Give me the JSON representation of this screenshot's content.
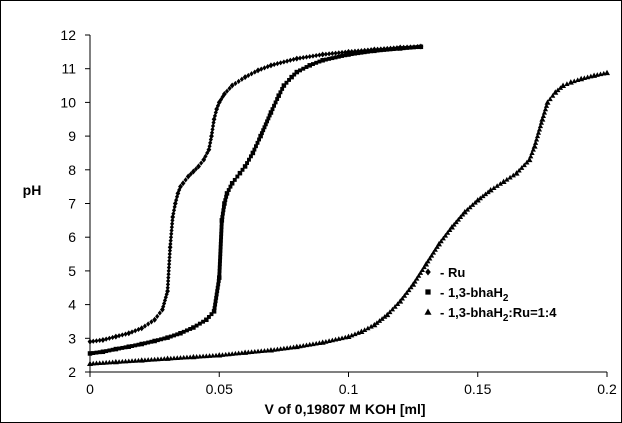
{
  "chart_data": {
    "type": "scatter",
    "xlabel": "V of 0,19807 M KOH [ml]",
    "ylabel": "pH",
    "xlim": [
      0,
      0.2
    ],
    "ylim": [
      2,
      12
    ],
    "x_ticks": [
      "0",
      "0.05",
      "0.1",
      "0.15",
      "0.2"
    ],
    "y_ticks": [
      "2",
      "3",
      "4",
      "5",
      "6",
      "7",
      "8",
      "9",
      "10",
      "11",
      "12"
    ],
    "grid": false,
    "legend_position": "bottom-right",
    "series": [
      {
        "name_prefix": "- ",
        "name": "Ru",
        "name_sub": "",
        "name_suffix": "",
        "marker": "diamond",
        "x": [
          0,
          0.005,
          0.01,
          0.015,
          0.02,
          0.025,
          0.028,
          0.03,
          0.031,
          0.032,
          0.033,
          0.034,
          0.035,
          0.036,
          0.038,
          0.04,
          0.042,
          0.044,
          0.046,
          0.047,
          0.048,
          0.049,
          0.05,
          0.052,
          0.055,
          0.06,
          0.065,
          0.07,
          0.08,
          0.09,
          0.1,
          0.11,
          0.12,
          0.128
        ],
        "y": [
          2.9,
          2.95,
          3.05,
          3.15,
          3.3,
          3.55,
          3.85,
          4.4,
          5.7,
          6.6,
          7.0,
          7.3,
          7.5,
          7.6,
          7.8,
          7.95,
          8.1,
          8.3,
          8.6,
          9.0,
          9.5,
          9.8,
          10.0,
          10.25,
          10.5,
          10.75,
          10.95,
          11.1,
          11.3,
          11.42,
          11.5,
          11.57,
          11.63,
          11.66
        ]
      },
      {
        "name_prefix": "- ",
        "name": "1,3-bhaH",
        "name_sub": "2",
        "name_suffix": "",
        "marker": "square",
        "x": [
          0,
          0.005,
          0.01,
          0.015,
          0.02,
          0.025,
          0.03,
          0.035,
          0.04,
          0.045,
          0.048,
          0.05,
          0.051,
          0.052,
          0.053,
          0.055,
          0.058,
          0.06,
          0.063,
          0.066,
          0.07,
          0.073,
          0.075,
          0.078,
          0.08,
          0.085,
          0.09,
          0.1,
          0.11,
          0.12,
          0.128
        ],
        "y": [
          2.55,
          2.6,
          2.68,
          2.75,
          2.83,
          2.92,
          3.02,
          3.15,
          3.32,
          3.55,
          3.8,
          4.8,
          6.5,
          7.0,
          7.3,
          7.6,
          7.9,
          8.1,
          8.5,
          9.0,
          9.7,
          10.2,
          10.5,
          10.75,
          10.9,
          11.1,
          11.25,
          11.42,
          11.53,
          11.6,
          11.65
        ]
      },
      {
        "name_prefix": "- ",
        "name": "1,3-bhaH",
        "name_sub": "2",
        "name_suffix": ":Ru=1:4",
        "marker": "triangle",
        "x": [
          0,
          0.01,
          0.02,
          0.03,
          0.04,
          0.05,
          0.06,
          0.07,
          0.08,
          0.09,
          0.1,
          0.105,
          0.11,
          0.115,
          0.12,
          0.125,
          0.13,
          0.135,
          0.14,
          0.145,
          0.15,
          0.155,
          0.16,
          0.165,
          0.17,
          0.172,
          0.175,
          0.177,
          0.18,
          0.183,
          0.186,
          0.19,
          0.195,
          0.2
        ],
        "y": [
          2.25,
          2.3,
          2.35,
          2.4,
          2.45,
          2.5,
          2.58,
          2.65,
          2.75,
          2.88,
          3.05,
          3.2,
          3.4,
          3.7,
          4.1,
          4.6,
          5.2,
          5.8,
          6.3,
          6.75,
          7.1,
          7.4,
          7.65,
          7.9,
          8.3,
          8.7,
          9.5,
          10.0,
          10.3,
          10.5,
          10.6,
          10.7,
          10.8,
          10.88
        ]
      }
    ]
  }
}
